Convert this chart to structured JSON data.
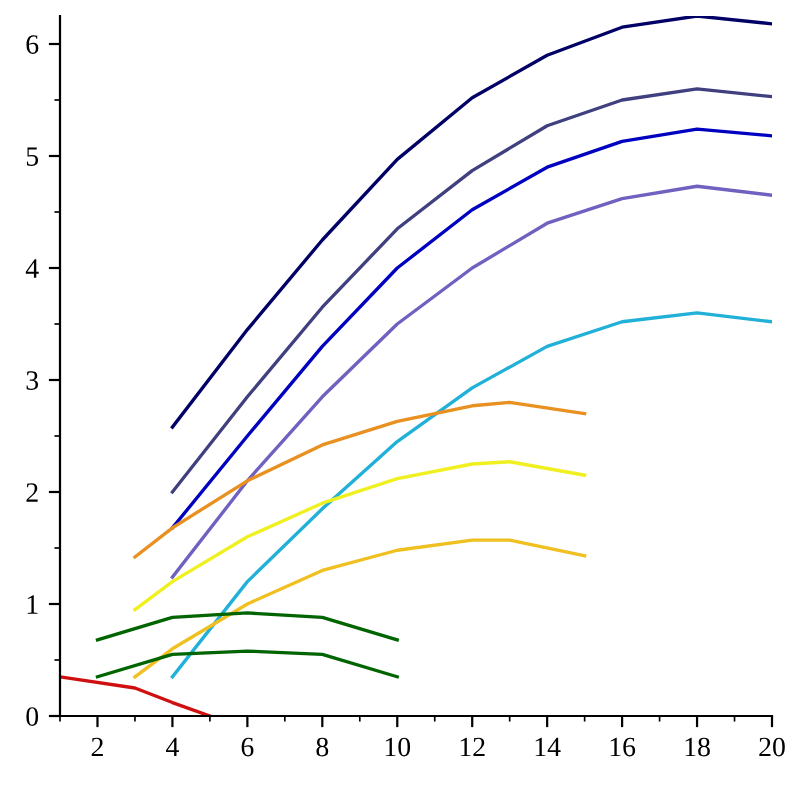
{
  "chart_data": {
    "type": "line",
    "xlim": [
      1,
      20
    ],
    "ylim": [
      0,
      6.25
    ],
    "xticks": [
      2,
      4,
      6,
      8,
      10,
      12,
      14,
      16,
      18,
      20
    ],
    "yticks": [
      0,
      1,
      2,
      3,
      4,
      5,
      6
    ],
    "grid": false,
    "legend": false,
    "series": [
      {
        "color": "#000066",
        "x": [
          4,
          6,
          8,
          10,
          12,
          14,
          16,
          18,
          20
        ],
        "values": [
          2.58,
          3.45,
          4.25,
          4.97,
          5.52,
          5.9,
          6.15,
          6.25,
          6.18
        ]
      },
      {
        "color": "#404080",
        "x": [
          4,
          6,
          8,
          10,
          12,
          14,
          16,
          18,
          20
        ],
        "values": [
          2.0,
          2.85,
          3.65,
          4.35,
          4.87,
          5.27,
          5.5,
          5.6,
          5.53
        ]
      },
      {
        "color": "#0000c0",
        "x": [
          4,
          6,
          8,
          10,
          12,
          14,
          16,
          18,
          20
        ],
        "values": [
          1.68,
          2.5,
          3.3,
          4.0,
          4.52,
          4.9,
          5.13,
          5.24,
          5.18
        ]
      },
      {
        "color": "#7060c0",
        "x": [
          4,
          6,
          8,
          10,
          12,
          14,
          16,
          18,
          20
        ],
        "values": [
          1.24,
          2.1,
          2.85,
          3.5,
          4.0,
          4.4,
          4.62,
          4.73,
          4.65
        ]
      },
      {
        "color": "#20b0d8",
        "x": [
          4,
          6,
          8,
          10,
          12,
          14,
          16,
          18,
          20
        ],
        "values": [
          0.35,
          1.2,
          1.85,
          2.45,
          2.93,
          3.3,
          3.52,
          3.6,
          3.52
        ]
      },
      {
        "color": "#e89020",
        "x": [
          3,
          4,
          6,
          8,
          10,
          12,
          13,
          15
        ],
        "values": [
          1.42,
          1.68,
          2.1,
          2.42,
          2.63,
          2.77,
          2.8,
          2.7
        ]
      },
      {
        "color": "#f0f020",
        "x": [
          3,
          4,
          6,
          8,
          10,
          12,
          13,
          15
        ],
        "values": [
          0.95,
          1.2,
          1.6,
          1.9,
          2.12,
          2.25,
          2.27,
          2.15
        ]
      },
      {
        "color": "#f0c020",
        "x": [
          3,
          4,
          6,
          8,
          10,
          12,
          13,
          15
        ],
        "values": [
          0.35,
          0.6,
          1.0,
          1.3,
          1.48,
          1.57,
          1.57,
          1.43
        ]
      },
      {
        "color": "#006400",
        "x": [
          2,
          4,
          6,
          8,
          10
        ],
        "values": [
          0.68,
          0.88,
          0.92,
          0.88,
          0.68
        ]
      },
      {
        "color": "#006400",
        "x": [
          2,
          4,
          6,
          8,
          10
        ],
        "values": [
          0.35,
          0.55,
          0.58,
          0.55,
          0.35
        ]
      },
      {
        "color": "#d01010",
        "x": [
          1,
          3,
          4,
          5
        ],
        "values": [
          0.35,
          0.25,
          0.12,
          0.0
        ]
      }
    ]
  }
}
